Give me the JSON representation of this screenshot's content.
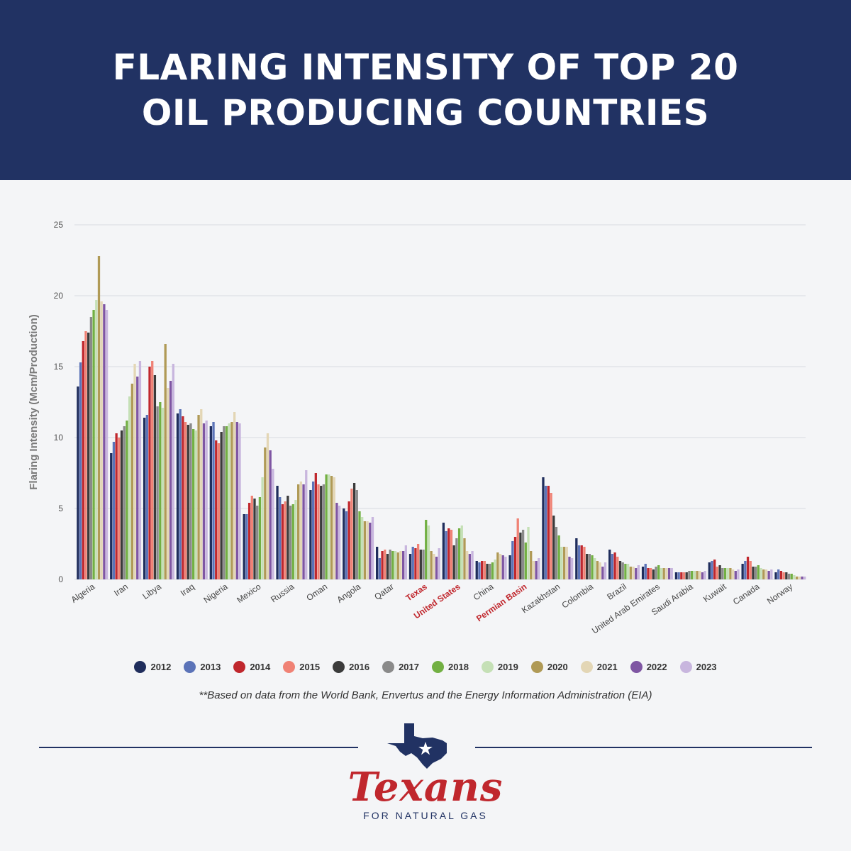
{
  "header": {
    "title": "FLARING INTENSITY OF TOP 20\nOIL PRODUCING COUNTRIES"
  },
  "footnote": "**Based on data from the World Bank, Envertus and the Energy Information Administration (EIA)",
  "brand": {
    "name": "Texans",
    "tagline": "FOR NATURAL GAS"
  },
  "colors": {
    "header_bg": "#213263",
    "highlight_label": "#c0272d"
  },
  "chart_data": {
    "type": "bar",
    "ylabel": "Flaring Intensity (Mcm/Production)",
    "ylim": [
      0,
      25
    ],
    "yticks": [
      0,
      5,
      10,
      15,
      20,
      25
    ],
    "grid": true,
    "legend_position": "bottom",
    "categories": [
      "Algeria",
      "Iran",
      "Libya",
      "Iraq",
      "Nigeria",
      "Mexico",
      "Russia",
      "Oman",
      "Angola",
      "Qatar",
      "Texas",
      "United States",
      "China",
      "Permian Basin",
      "Kazakhstan",
      "Colombia",
      "Brazil",
      "United Arab Emirates",
      "Saudi Arabia",
      "Kuwait",
      "Canada",
      "Norway"
    ],
    "highlighted_categories": [
      "Texas",
      "United States",
      "Permian Basin"
    ],
    "series": [
      {
        "name": "2012",
        "color": "#1f2d5c",
        "values": [
          13.6,
          8.9,
          11.4,
          11.7,
          10.8,
          4.6,
          6.6,
          6.3,
          5.0,
          2.3,
          1.8,
          4.0,
          1.3,
          1.7,
          7.2,
          2.9,
          2.1,
          0.9,
          0.5,
          1.2,
          1.1,
          0.5
        ]
      },
      {
        "name": "2013",
        "color": "#5b73b8",
        "values": [
          15.3,
          9.7,
          11.6,
          12.0,
          11.1,
          4.6,
          5.8,
          6.9,
          4.8,
          1.5,
          2.3,
          3.4,
          1.2,
          2.7,
          6.6,
          2.4,
          1.8,
          1.1,
          0.5,
          1.3,
          1.3,
          0.7
        ]
      },
      {
        "name": "2014",
        "color": "#c0272d",
        "values": [
          16.8,
          10.3,
          15.0,
          11.5,
          9.8,
          5.4,
          5.3,
          7.5,
          5.5,
          2.0,
          2.2,
          3.6,
          1.3,
          3.0,
          6.6,
          2.4,
          1.9,
          0.8,
          0.5,
          1.4,
          1.6,
          0.6
        ]
      },
      {
        "name": "2015",
        "color": "#f08275",
        "values": [
          17.5,
          10.0,
          15.4,
          11.1,
          9.6,
          5.9,
          5.5,
          6.7,
          6.4,
          2.1,
          2.5,
          3.5,
          1.3,
          4.3,
          6.1,
          2.3,
          1.6,
          0.8,
          0.5,
          0.9,
          1.3,
          0.5
        ]
      },
      {
        "name": "2016",
        "color": "#3b3b3b",
        "values": [
          17.4,
          10.5,
          14.4,
          10.9,
          10.4,
          5.7,
          5.9,
          6.6,
          6.8,
          1.8,
          2.1,
          2.4,
          1.1,
          3.3,
          4.5,
          1.8,
          1.3,
          0.7,
          0.5,
          1.0,
          0.9,
          0.5
        ]
      },
      {
        "name": "2017",
        "color": "#8a8a8a",
        "values": [
          18.5,
          10.8,
          12.2,
          11.0,
          10.8,
          5.2,
          5.2,
          6.7,
          6.3,
          2.1,
          2.1,
          2.9,
          1.1,
          3.5,
          3.7,
          1.8,
          1.2,
          0.9,
          0.6,
          0.8,
          0.9,
          0.4
        ]
      },
      {
        "name": "2018",
        "color": "#72b043",
        "values": [
          19.0,
          11.2,
          12.5,
          10.6,
          10.8,
          5.8,
          5.3,
          7.4,
          4.8,
          2.0,
          4.2,
          3.6,
          1.2,
          2.6,
          3.1,
          1.7,
          1.1,
          1.0,
          0.6,
          0.8,
          1.0,
          0.4
        ]
      },
      {
        "name": "2019",
        "color": "#c5e0b6",
        "values": [
          19.7,
          12.9,
          12.1,
          10.5,
          11.0,
          7.2,
          5.6,
          7.4,
          4.4,
          2.0,
          3.8,
          3.8,
          1.4,
          3.7,
          2.3,
          1.5,
          1.1,
          0.8,
          0.6,
          0.8,
          0.8,
          0.3
        ]
      },
      {
        "name": "2020",
        "color": "#b09a56",
        "values": [
          22.8,
          13.8,
          16.6,
          11.6,
          11.1,
          9.3,
          6.7,
          7.3,
          4.1,
          1.9,
          2.0,
          2.9,
          1.9,
          2.0,
          2.3,
          1.3,
          0.9,
          0.8,
          0.6,
          0.8,
          0.7,
          0.2
        ]
      },
      {
        "name": "2021",
        "color": "#e3d6b5",
        "values": [
          19.6,
          15.2,
          13.5,
          12.0,
          11.8,
          10.3,
          6.9,
          7.2,
          4.1,
          2.0,
          1.8,
          2.0,
          1.8,
          1.3,
          2.3,
          1.2,
          0.9,
          0.8,
          0.6,
          0.7,
          0.7,
          0.2
        ]
      },
      {
        "name": "2022",
        "color": "#7f56a3",
        "values": [
          19.4,
          14.3,
          14.0,
          11.0,
          11.1,
          9.1,
          6.7,
          5.4,
          4.0,
          2.0,
          1.6,
          1.8,
          1.7,
          1.3,
          1.6,
          0.9,
          0.8,
          0.8,
          0.5,
          0.6,
          0.6,
          0.2
        ]
      },
      {
        "name": "2023",
        "color": "#c8b6de",
        "values": [
          19.0,
          15.4,
          15.2,
          11.2,
          11.0,
          7.8,
          7.7,
          5.2,
          4.4,
          2.4,
          2.2,
          2.0,
          1.6,
          1.5,
          1.5,
          1.2,
          1.0,
          0.8,
          0.6,
          0.7,
          0.7,
          0.2
        ]
      }
    ]
  }
}
